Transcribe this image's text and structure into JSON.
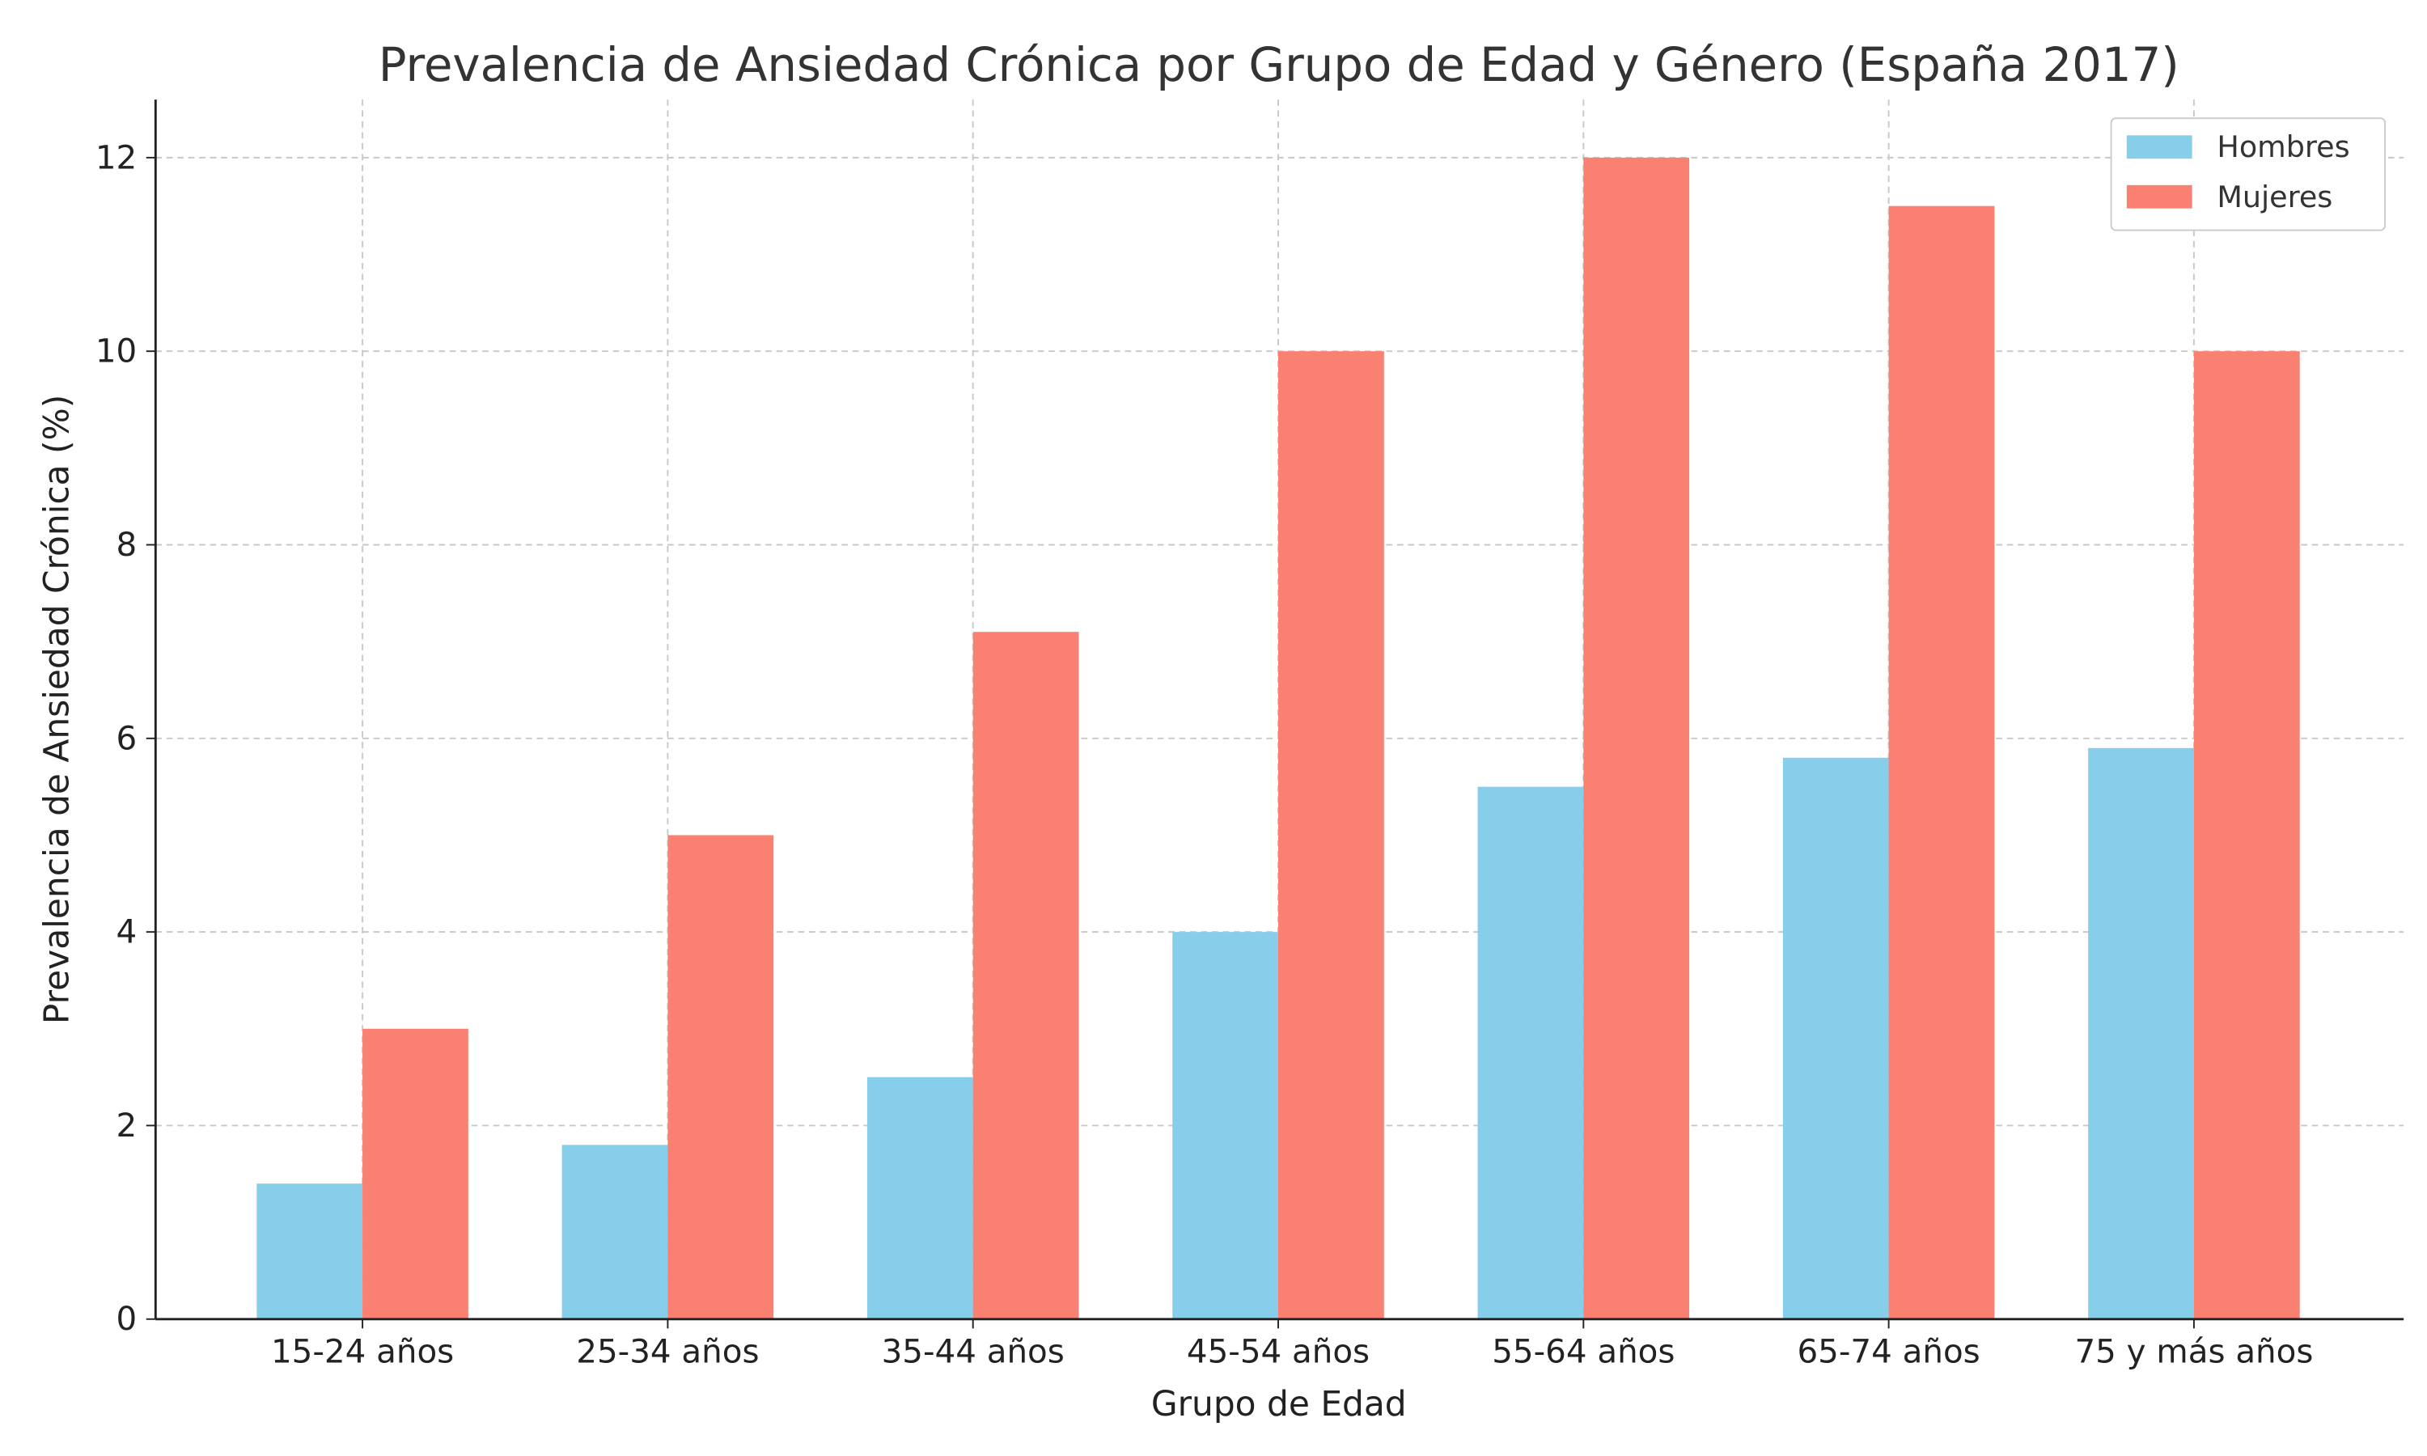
{
  "chart_data": {
    "type": "bar",
    "title": "Prevalencia de Ansiedad Crónica por Grupo de Edad y Género (España 2017)",
    "xlabel": "Grupo de Edad",
    "ylabel": "Prevalencia de Ansiedad Crónica (%)",
    "categories": [
      "15-24 años",
      "25-34 años",
      "35-44 años",
      "45-54 años",
      "55-64 años",
      "65-74 años",
      "75 y más años"
    ],
    "series": [
      {
        "name": "Hombres",
        "color": "#87CEEB",
        "values": [
          1.4,
          1.8,
          2.5,
          4.0,
          5.5,
          5.8,
          5.9
        ]
      },
      {
        "name": "Mujeres",
        "color": "#FA8072",
        "values": [
          3.0,
          5.0,
          7.1,
          10.0,
          12.0,
          11.5,
          10.0
        ]
      }
    ],
    "ylim": [
      0,
      12.6
    ],
    "yticks": [
      0,
      2,
      4,
      6,
      8,
      10,
      12
    ],
    "grid": true,
    "legend_position": "top-right"
  }
}
